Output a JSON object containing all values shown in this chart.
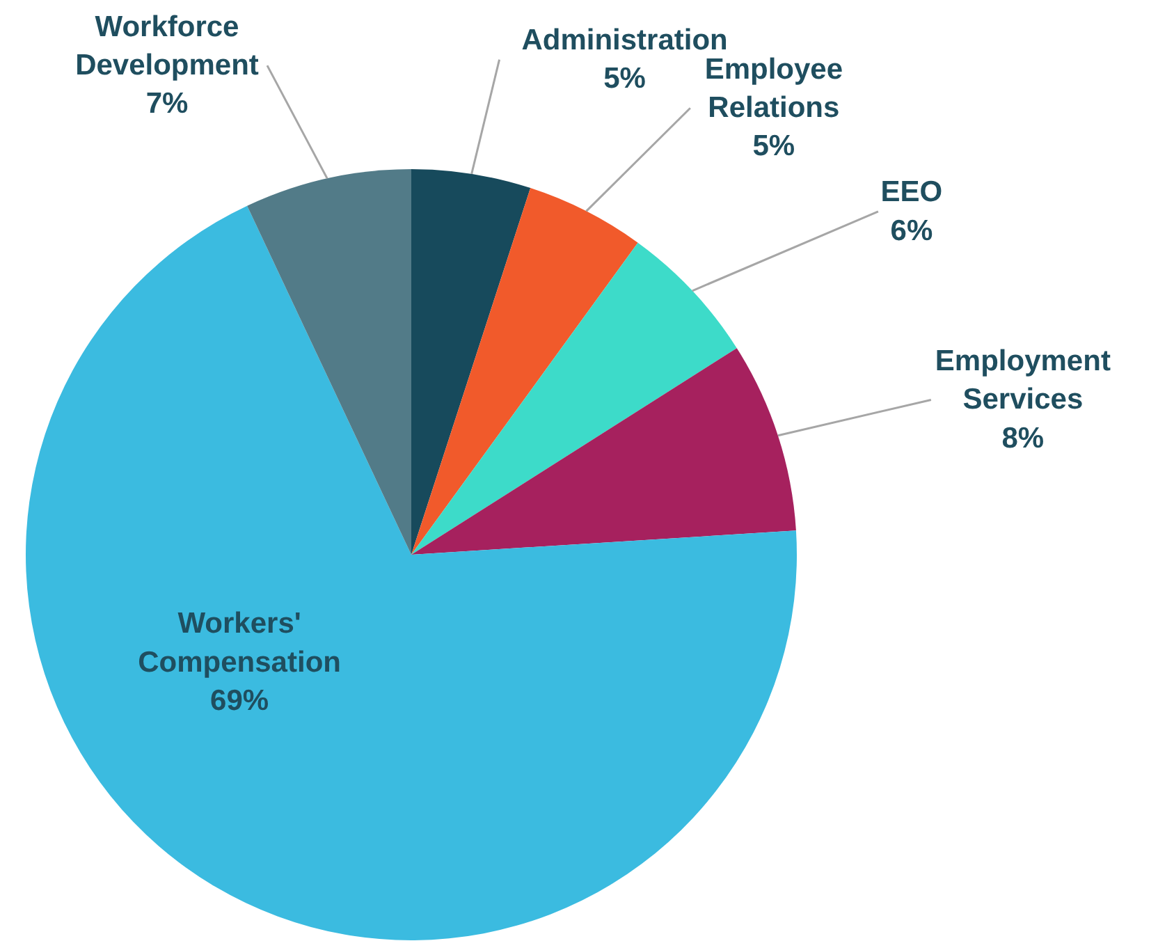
{
  "chart_data": {
    "type": "pie",
    "categories": [
      "Administration",
      "Employee Relations",
      "EEO",
      "Employment Services",
      "Workers' Compensation",
      "Workforce Development"
    ],
    "values": [
      5,
      5,
      6,
      8,
      69,
      7
    ],
    "colors": [
      "#174a5c",
      "#f15a2b",
      "#3ddbc9",
      "#a6215e",
      "#3bbbe0",
      "#527b88"
    ],
    "value_labels": [
      "5%",
      "5%",
      "6%",
      "8%",
      "69%",
      "7%"
    ]
  }
}
